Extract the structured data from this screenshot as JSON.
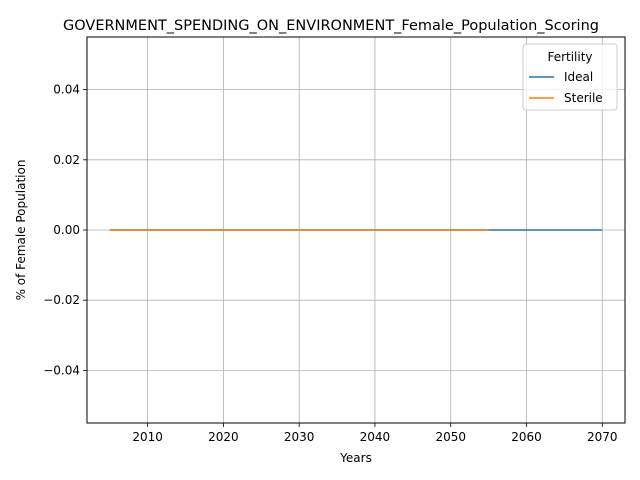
{
  "chart_data": {
    "type": "line",
    "title": "GOVERNMENT_SPENDING_ON_ENVIRONMENT_Female_Population_Scoring",
    "xlabel": "Years",
    "ylabel": "% of Female Population",
    "xlim": [
      2002,
      2073
    ],
    "ylim": [
      -0.055,
      0.055
    ],
    "xticks": [
      2010,
      2020,
      2030,
      2040,
      2050,
      2060,
      2070
    ],
    "yticks": [
      -0.04,
      -0.02,
      0.0,
      0.02,
      0.04
    ],
    "ytick_labels": [
      "−0.04",
      "−0.02",
      "0.00",
      "0.02",
      "0.04"
    ],
    "grid": true,
    "legend": {
      "title": "Fertility",
      "placement": "top-right"
    },
    "series": [
      {
        "name": "Ideal",
        "color": "#1f77b4",
        "x": [
          2005,
          2070
        ],
        "y": [
          0,
          0
        ]
      },
      {
        "name": "Sterile",
        "color": "#ff7f0e",
        "x": [
          2005,
          2055
        ],
        "y": [
          0,
          0
        ]
      }
    ]
  }
}
